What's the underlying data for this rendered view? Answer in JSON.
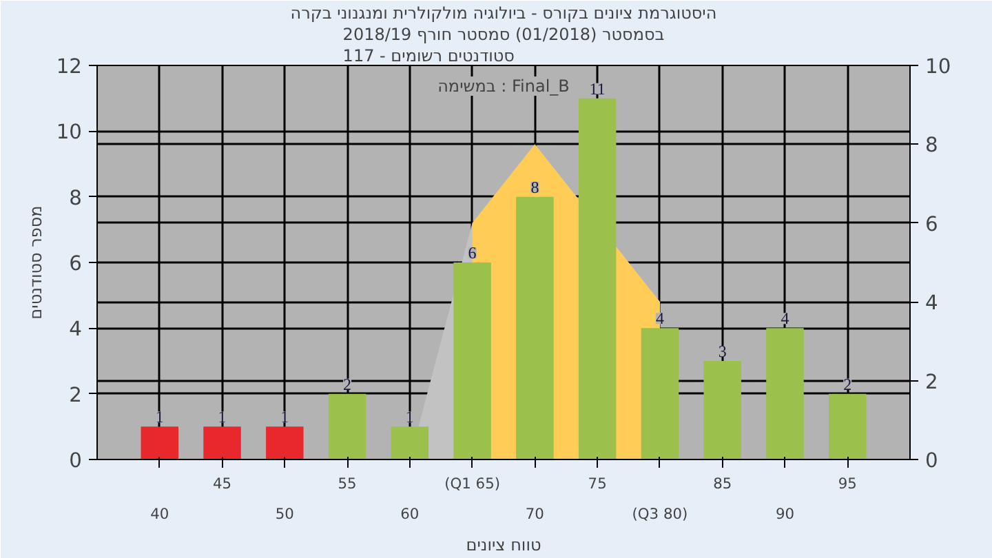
{
  "chart_data": {
    "type": "bar",
    "title": "היסטוגרמת ציונים בקורס - ביולוגיה מולקולרית ומנגנוני בקרה",
    "subtitle": "בסמסטר (01/2018) סמסטר חורף 2018/19\nסטודנטים רשומים - 117",
    "xlabel": "טווח ציונים",
    "ylabel": "מספר סטודנטים",
    "annotations": [
      "במשימה : Final_B"
    ],
    "categories": [
      "40",
      "45",
      "50",
      "55",
      "60",
      "(Q1 65)",
      "70",
      "75",
      "(Q3 80)",
      "85",
      "90",
      "95"
    ],
    "series": [
      {
        "type": "area",
        "axis": "y2",
        "color": "#c2c2c2",
        "values": [
          null,
          null,
          null,
          null,
          0,
          6,
          8,
          null,
          4,
          null,
          null,
          null
        ]
      },
      {
        "type": "area",
        "axis": "y2",
        "color": "#ffcc55",
        "values": [
          null,
          null,
          null,
          null,
          null,
          6,
          8,
          null,
          4,
          null,
          null,
          null
        ]
      },
      {
        "values": [
          1,
          1,
          1,
          2,
          1,
          6,
          8,
          11,
          4,
          3,
          4,
          2
        ],
        "value_labels": [
          "1",
          "1",
          "1",
          "2",
          "1",
          "6",
          "8",
          "11",
          "4",
          "3",
          "4",
          "2"
        ],
        "colors": [
          "#e8282c",
          "#e8282c",
          "#e8282c",
          "#9cc04c",
          "#9cc04c",
          "#9cc04c",
          "#9cc04c",
          "#9cc04c",
          "#9cc04c",
          "#9cc04c",
          "#9cc04c",
          "#9cc04c"
        ]
      }
    ],
    "ylim": [
      0,
      12
    ],
    "yticks": [
      0,
      2,
      4,
      6,
      8,
      10,
      12
    ],
    "y2lim": [
      0,
      10
    ],
    "y2ticks": [
      0,
      2,
      4,
      6,
      8,
      10
    ],
    "grid": true
  }
}
